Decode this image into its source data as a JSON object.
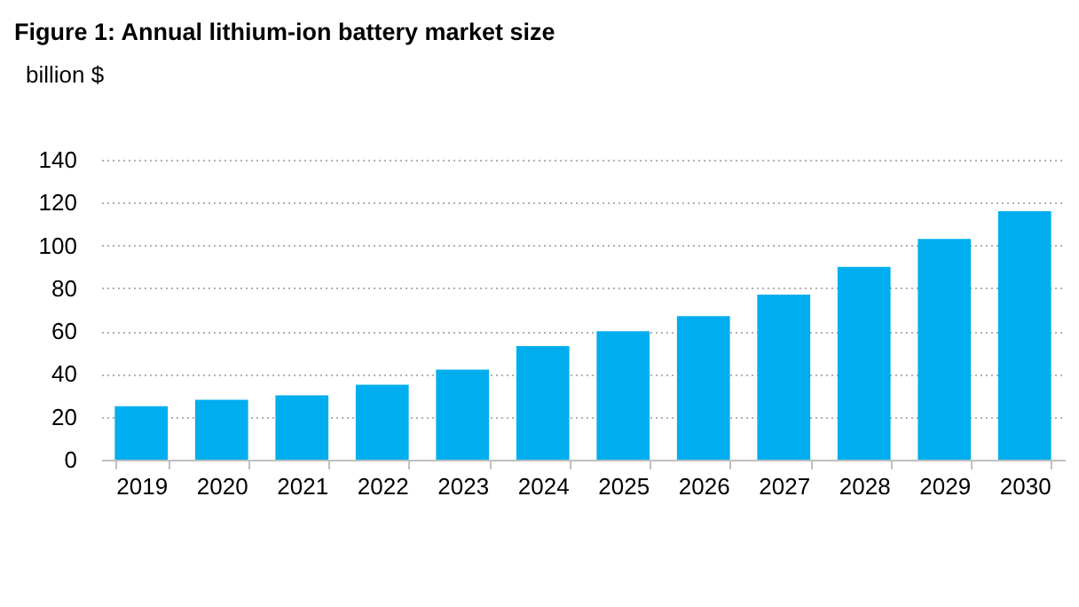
{
  "chart_data": {
    "type": "bar",
    "title": "Figure 1: Annual lithium-ion battery market size",
    "ylabel": "billion $",
    "categories": [
      "2019",
      "2020",
      "2021",
      "2022",
      "2023",
      "2024",
      "2025",
      "2026",
      "2027",
      "2028",
      "2029",
      "2030"
    ],
    "values": [
      25,
      28,
      30,
      35,
      42,
      53,
      60,
      67,
      77,
      90,
      103,
      116
    ],
    "color": "#00aeef",
    "ylim": [
      0,
      140
    ],
    "yticks": [
      0,
      20,
      40,
      60,
      80,
      100,
      120,
      140
    ],
    "grid": "y"
  }
}
